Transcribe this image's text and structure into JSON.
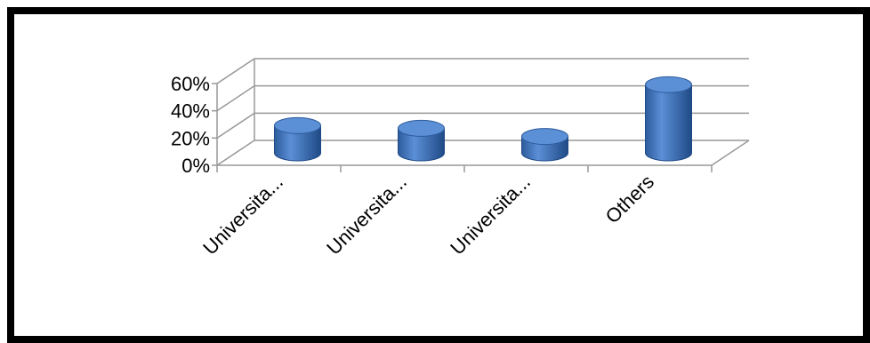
{
  "chart_data": {
    "type": "bar",
    "style": "3d-cylinder",
    "categories": [
      "Universita...",
      "Universita...",
      "Universita...",
      "Others"
    ],
    "values": [
      0.2,
      0.18,
      0.12,
      0.5
    ],
    "ylim": [
      0,
      0.6
    ],
    "y_ticks": [
      {
        "value": 0.0,
        "label": "0%"
      },
      {
        "value": 0.2,
        "label": "20%"
      },
      {
        "value": 0.4,
        "label": "40%"
      },
      {
        "value": 0.6,
        "label": "60%"
      }
    ],
    "grid": true,
    "legend": "none",
    "bar_color": "#3d72b8",
    "bar_top_color": "#5b8fd6",
    "grid_color": "#999999"
  }
}
